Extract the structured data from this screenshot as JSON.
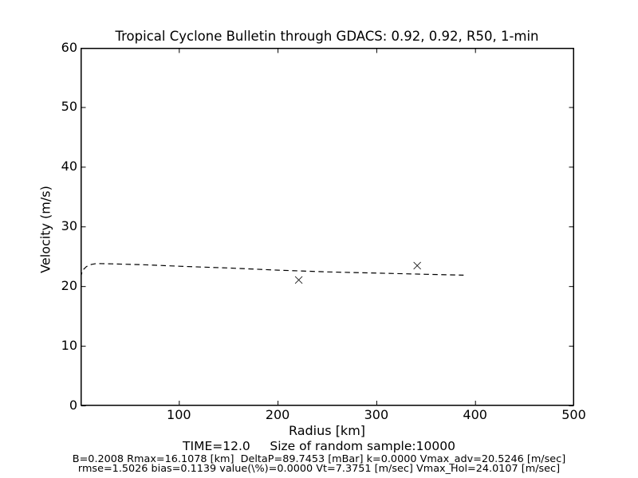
{
  "figure": {
    "title": "Tropical Cyclone Bulletin through GDACS: 0.92, 0.92, R50, 1-min",
    "xlabel": "Radius [km]",
    "ylabel": "Velocity (m/s)",
    "footer_time_line": "TIME=12.0     Size of random sample:10000",
    "footer_params_line1": "B=0.2008 Rmax=16.1078 [km]  DeltaP=89.7453 [mBar] k=0.0000 Vmax_adv=20.5246 [m/sec]",
    "footer_params_line2": "rmse=1.5026 bias=0.1139 value(\\%)=0.0000 Vt=7.3751 [m/sec] Vmax_Hol=24.0107 [m/sec]"
  },
  "chart_data": {
    "type": "line",
    "title": "Tropical Cyclone Bulletin through GDACS: 0.92, 0.92, R50, 1-min",
    "xlabel": "Radius [km]",
    "ylabel": "Velocity (m/s)",
    "xlim": [
      0,
      500
    ],
    "ylim": [
      0,
      60
    ],
    "xticks": [
      100,
      200,
      300,
      400,
      500
    ],
    "yticks": [
      0,
      10,
      20,
      30,
      40,
      50,
      60
    ],
    "grid": false,
    "legend": "none",
    "series": [
      {
        "name": "holland-wind-profile",
        "style": "dashed",
        "color": "#000000",
        "points": [
          [
            0,
            21.5
          ],
          [
            2,
            22.7
          ],
          [
            6,
            23.35
          ],
          [
            11,
            23.7
          ],
          [
            16,
            23.85
          ],
          [
            32,
            23.8
          ],
          [
            64,
            23.65
          ],
          [
            100,
            23.4
          ],
          [
            150,
            23.1
          ],
          [
            200,
            22.75
          ],
          [
            250,
            22.45
          ],
          [
            300,
            22.25
          ],
          [
            350,
            22.05
          ],
          [
            388,
            21.9
          ]
        ]
      },
      {
        "name": "observation-points",
        "style": "x-markers",
        "color": "#1a1a1a",
        "points": [
          [
            221,
            21.1
          ],
          [
            341,
            23.5
          ]
        ]
      }
    ]
  },
  "colors": {
    "background": "#ffffff",
    "axis": "#000000",
    "text": "#000000"
  }
}
